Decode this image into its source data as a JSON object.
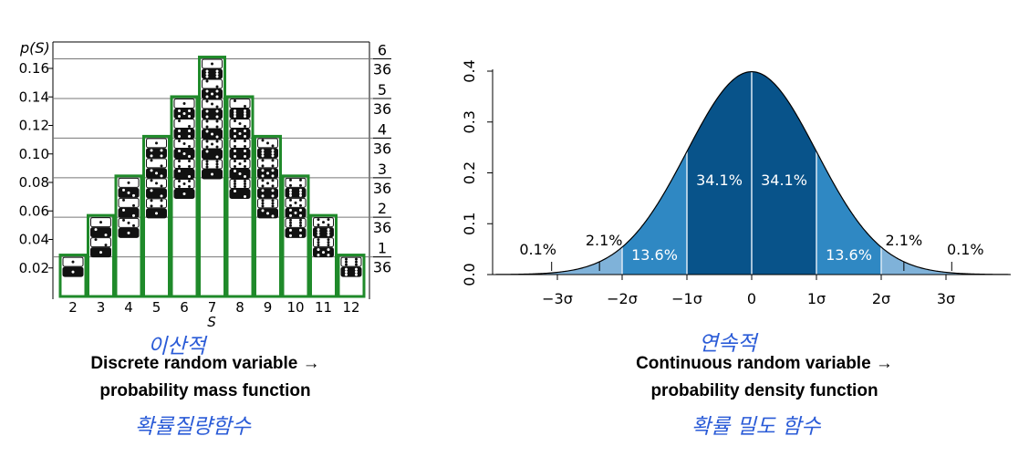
{
  "left_chart": {
    "caption_line1": "Discrete random variable →",
    "caption_line2": "probability mass function",
    "handwritten_top": "이산적",
    "handwritten_bottom": "확률질량함수"
  },
  "right_chart": {
    "caption_line1": "Continuous random variable →",
    "caption_line2": "probability density function",
    "handwritten_top": "연속적",
    "handwritten_bottom": "확률 밀도 함수"
  },
  "colors": {
    "die_border": "#1f8a2a",
    "axis": "#000000",
    "normal_dark": "#08538a",
    "normal_mid": "#2f88c3",
    "normal_light": "#7fb2d9",
    "handwriting": "#2a5bd7"
  },
  "chart_data": [
    {
      "type": "bar",
      "subtype": "dice-stack",
      "categories": [
        "2",
        "3",
        "4",
        "5",
        "6",
        "7",
        "8",
        "9",
        "10",
        "11",
        "12"
      ],
      "values": [
        0.0278,
        0.0556,
        0.0833,
        0.1111,
        0.1389,
        0.1667,
        0.1389,
        0.1111,
        0.0833,
        0.0556,
        0.0278
      ],
      "counts": [
        1,
        2,
        3,
        4,
        5,
        6,
        5,
        4,
        3,
        2,
        1
      ],
      "title": "",
      "xlabel": "S",
      "ylabel": "p(S)",
      "ylim": [
        0,
        0.17
      ],
      "yticks": [
        "0.02",
        "0.04",
        "0.06",
        "0.08",
        "0.10",
        "0.12",
        "0.14",
        "0.16"
      ],
      "right_ticks": [
        {
          "num": "1",
          "den": "36",
          "value": 0.0278
        },
        {
          "num": "2",
          "den": "36",
          "value": 0.0556
        },
        {
          "num": "3",
          "den": "36",
          "value": 0.0833
        },
        {
          "num": "4",
          "den": "36",
          "value": 0.1111
        },
        {
          "num": "5",
          "den": "36",
          "value": 0.1389
        },
        {
          "num": "6",
          "den": "36",
          "value": 0.1667
        }
      ],
      "grid": true
    },
    {
      "type": "area",
      "subtype": "normal-distribution",
      "title": "",
      "xlabel": "",
      "ylabel": "",
      "xlim": [
        -4,
        4
      ],
      "ylim": [
        0,
        0.4
      ],
      "xticks": [
        "−3σ",
        "−2σ",
        "−1σ",
        "0",
        "1σ",
        "2σ",
        "3σ"
      ],
      "yticks": [
        "0.0",
        "0.1",
        "0.2",
        "0.3",
        "0.4"
      ],
      "regions": [
        {
          "label": "34.1%",
          "from": -1,
          "to": 0,
          "color": "dark"
        },
        {
          "label": "34.1%",
          "from": 0,
          "to": 1,
          "color": "dark"
        },
        {
          "label": "13.6%",
          "from": -2,
          "to": -1,
          "color": "mid"
        },
        {
          "label": "13.6%",
          "from": 1,
          "to": 2,
          "color": "mid"
        },
        {
          "label": "2.1%",
          "from": -3,
          "to": -2,
          "color": "light"
        },
        {
          "label": "2.1%",
          "from": 2,
          "to": 3,
          "color": "light"
        },
        {
          "label": "0.1%",
          "from": -4,
          "to": -3,
          "color": "light"
        },
        {
          "label": "0.1%",
          "from": 3,
          "to": 4,
          "color": "light"
        }
      ],
      "grid": false
    }
  ]
}
